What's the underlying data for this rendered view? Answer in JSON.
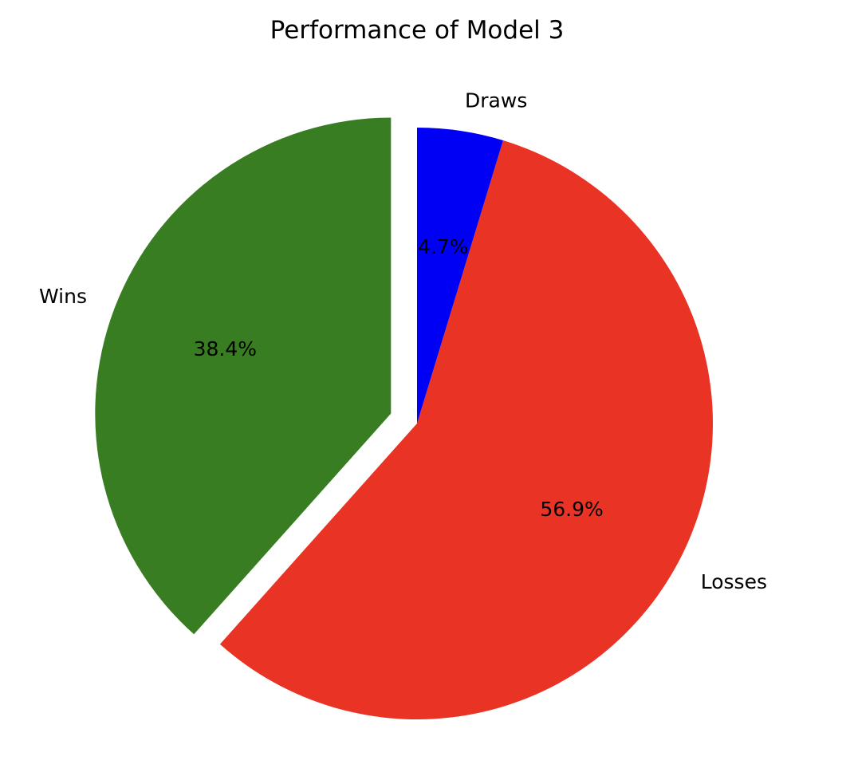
{
  "chart_data": {
    "type": "pie",
    "title": "Performance of Model 3",
    "slices": [
      {
        "label": "Wins",
        "value": 38.4,
        "pct_label": "38.4%",
        "color": "#387d22",
        "exploded": true
      },
      {
        "label": "Losses",
        "value": 56.9,
        "pct_label": "56.9%",
        "color": "#e93324",
        "exploded": false
      },
      {
        "label": "Draws",
        "value": 4.7,
        "pct_label": "4.7%",
        "color": "#0000f5",
        "exploded": false
      }
    ],
    "start_angle": 90,
    "direction": "counterclockwise",
    "legend": "none"
  }
}
